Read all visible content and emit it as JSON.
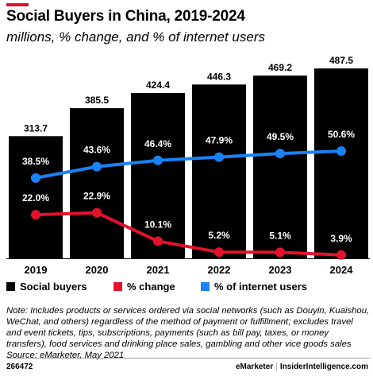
{
  "header": {
    "title": "Social Buyers in China, 2019-2024",
    "subtitle": "millions, % change, and % of internet users",
    "accent_color": "#e3122c"
  },
  "chart_data": {
    "type": "bar",
    "categories": [
      "2019",
      "2020",
      "2021",
      "2022",
      "2023",
      "2024"
    ],
    "series": [
      {
        "name": "Social buyers",
        "kind": "bar",
        "color": "#000000",
        "values": [
          313.7,
          385.5,
          424.4,
          446.3,
          469.2,
          487.5
        ],
        "labels": [
          "313.7",
          "385.5",
          "424.4",
          "446.3",
          "469.2",
          "487.5"
        ]
      },
      {
        "name": "% change",
        "kind": "line",
        "color": "#e3122c",
        "values": [
          22.0,
          22.9,
          10.1,
          5.2,
          5.1,
          3.9
        ],
        "labels": [
          "22.0%",
          "22.9%",
          "10.1%",
          "5.2%",
          "5.1%",
          "3.9%"
        ]
      },
      {
        "name": "% of internet users",
        "kind": "line",
        "color": "#1a82f4",
        "values": [
          38.5,
          43.6,
          46.4,
          47.9,
          49.5,
          50.6
        ],
        "labels": [
          "38.5%",
          "43.6%",
          "46.4%",
          "47.9%",
          "49.5%",
          "50.6%"
        ]
      }
    ],
    "ylim": [
      0,
      500
    ],
    "grid": false,
    "legend": "bottom-left"
  },
  "legend": [
    {
      "label": "Social buyers",
      "color": "#000000"
    },
    {
      "label": "% change",
      "color": "#e3122c"
    },
    {
      "label": "% of internet users",
      "color": "#1a82f4"
    }
  ],
  "note": "Note: Includes products or services ordered via social networks (such as Douyin, Kuaishou, WeChat, and others) regardless of the method of payment or fulfillment; excludes travel and event tickets, tips, subscriptions, payments (such as bill pay, taxes, or money transfers), food services and drinking place sales, gambling and other vice goods sales",
  "source": "Source: eMarketer, May 2021",
  "footer": {
    "chart_id": "266472",
    "brand_left": "eMarketer",
    "separator": "|",
    "brand_right": "InsiderIntelligence.com"
  }
}
